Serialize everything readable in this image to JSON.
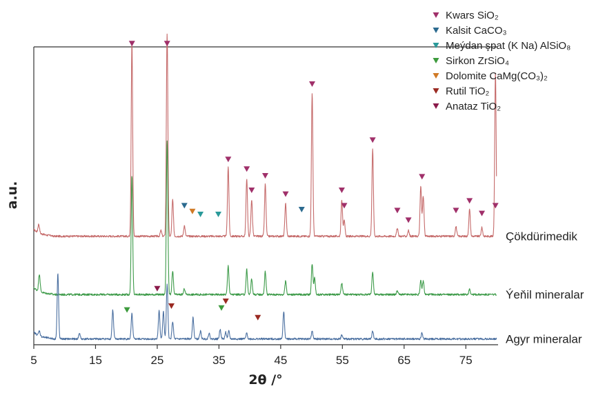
{
  "chart_data": {
    "type": "line",
    "xlabel": "2θ /°",
    "ylabel": "a.u.",
    "xlim": [
      5,
      80
    ],
    "x_ticks": [
      5,
      15,
      25,
      35,
      45,
      55,
      65,
      75
    ],
    "legend": {
      "position": "top-right",
      "entries": [
        {
          "symbol": "down-triangle",
          "color": "#a0306a",
          "label": "Kwars SiO₂"
        },
        {
          "symbol": "down-triangle",
          "color": "#2b6a8f",
          "label": "Kalsit CaCO₃"
        },
        {
          "symbol": "down-triangle",
          "color": "#2a9a9a",
          "label": "Meýdan şpat (K Na) AlSiO₈"
        },
        {
          "symbol": "down-triangle",
          "color": "#3c9a3c",
          "label": "Sirkon ZrSiO₄"
        },
        {
          "symbol": "down-triangle",
          "color": "#d07a26",
          "label": "Dolomite CaMg(CO₃)₂"
        },
        {
          "symbol": "down-triangle",
          "color": "#9a2a22",
          "label": "Rutil TiO₂"
        },
        {
          "symbol": "down-triangle",
          "color": "#8a1a4a",
          "label": "Anataz TiO₂"
        }
      ]
    },
    "series": [
      {
        "name": "Çökdürimedik",
        "color": "#c56a6a",
        "baseline": 0.62,
        "noise": 0.05,
        "peaks": [
          {
            "x": 5.8,
            "h": 0.45
          },
          {
            "x": 20.9,
            "h": 10.1
          },
          {
            "x": 25.6,
            "h": 0.3
          },
          {
            "x": 26.6,
            "h": 10.5
          },
          {
            "x": 27.5,
            "h": 1.9
          },
          {
            "x": 29.4,
            "h": 0.55
          },
          {
            "x": 36.5,
            "h": 3.6
          },
          {
            "x": 39.5,
            "h": 3.0
          },
          {
            "x": 40.3,
            "h": 1.9
          },
          {
            "x": 42.5,
            "h": 2.7
          },
          {
            "x": 45.8,
            "h": 1.7
          },
          {
            "x": 50.1,
            "h": 7.4
          },
          {
            "x": 54.9,
            "h": 1.9
          },
          {
            "x": 55.3,
            "h": 0.8
          },
          {
            "x": 59.9,
            "h": 4.5
          },
          {
            "x": 63.9,
            "h": 0.4
          },
          {
            "x": 65.7,
            "h": 0.3
          },
          {
            "x": 67.7,
            "h": 2.6
          },
          {
            "x": 68.1,
            "h": 2.1
          },
          {
            "x": 73.4,
            "h": 0.5
          },
          {
            "x": 75.6,
            "h": 1.4
          },
          {
            "x": 77.6,
            "h": 0.45
          },
          {
            "x": 79.8,
            "h": 8.5
          }
        ]
      },
      {
        "name": "Ýeňil mineralar",
        "color": "#3c9a48",
        "baseline": -2.4,
        "noise": 0.05,
        "peaks": [
          {
            "x": 5.9,
            "h": 0.9
          },
          {
            "x": 20.9,
            "h": 6.2
          },
          {
            "x": 26.6,
            "h": 8.0
          },
          {
            "x": 27.5,
            "h": 1.2
          },
          {
            "x": 29.4,
            "h": 0.3
          },
          {
            "x": 36.5,
            "h": 1.5
          },
          {
            "x": 39.5,
            "h": 1.3
          },
          {
            "x": 40.3,
            "h": 0.8
          },
          {
            "x": 42.5,
            "h": 1.2
          },
          {
            "x": 45.8,
            "h": 0.7
          },
          {
            "x": 50.1,
            "h": 1.6
          },
          {
            "x": 50.5,
            "h": 0.9
          },
          {
            "x": 54.9,
            "h": 0.6
          },
          {
            "x": 59.9,
            "h": 1.2
          },
          {
            "x": 63.9,
            "h": 0.2
          },
          {
            "x": 67.7,
            "h": 0.7
          },
          {
            "x": 68.1,
            "h": 0.7
          },
          {
            "x": 75.6,
            "h": 0.3
          }
        ]
      },
      {
        "name": "Agyr mineralar",
        "color": "#4a6fa0",
        "baseline": -4.7,
        "noise": 0.05,
        "peaks": [
          {
            "x": 5.9,
            "h": 0.25
          },
          {
            "x": 8.9,
            "h": 3.4
          },
          {
            "x": 12.4,
            "h": 0.3
          },
          {
            "x": 17.8,
            "h": 1.5
          },
          {
            "x": 20.9,
            "h": 1.3
          },
          {
            "x": 25.3,
            "h": 1.5
          },
          {
            "x": 26.0,
            "h": 1.4
          },
          {
            "x": 26.6,
            "h": 2.8
          },
          {
            "x": 27.5,
            "h": 0.9
          },
          {
            "x": 30.8,
            "h": 1.1
          },
          {
            "x": 32.0,
            "h": 0.4
          },
          {
            "x": 33.4,
            "h": 0.3
          },
          {
            "x": 35.2,
            "h": 0.5
          },
          {
            "x": 36.1,
            "h": 0.35
          },
          {
            "x": 36.6,
            "h": 0.4
          },
          {
            "x": 39.5,
            "h": 0.3
          },
          {
            "x": 45.5,
            "h": 1.4
          },
          {
            "x": 50.1,
            "h": 0.4
          },
          {
            "x": 54.9,
            "h": 0.2
          },
          {
            "x": 59.9,
            "h": 0.4
          },
          {
            "x": 67.9,
            "h": 0.3
          }
        ]
      }
    ],
    "markers": [
      {
        "x": 20.9,
        "phase": "Kwars SiO₂",
        "color": "#a0306a",
        "series": 0,
        "y": 10.6
      },
      {
        "x": 26.6,
        "phase": "Kwars SiO₂",
        "color": "#a0306a",
        "series": 0,
        "y": 10.6
      },
      {
        "x": 36.5,
        "phase": "Kwars SiO₂",
        "color": "#a0306a",
        "series": 0,
        "y": 4.6
      },
      {
        "x": 39.5,
        "phase": "Kwars SiO₂",
        "color": "#a0306a",
        "series": 0,
        "y": 4.1
      },
      {
        "x": 40.3,
        "phase": "Kwars SiO₂",
        "color": "#a0306a",
        "series": 0,
        "y": 3.0
      },
      {
        "x": 42.5,
        "phase": "Kwars SiO₂",
        "color": "#a0306a",
        "series": 0,
        "y": 3.75
      },
      {
        "x": 45.8,
        "phase": "Kwars SiO₂",
        "color": "#a0306a",
        "series": 0,
        "y": 2.8
      },
      {
        "x": 50.1,
        "phase": "Kwars SiO₂",
        "color": "#a0306a",
        "series": 0,
        "y": 8.5
      },
      {
        "x": 54.9,
        "phase": "Kwars SiO₂",
        "color": "#a0306a",
        "series": 0,
        "y": 3.0
      },
      {
        "x": 55.3,
        "phase": "Kwars SiO₂",
        "color": "#a0306a",
        "series": 0,
        "y": 2.2
      },
      {
        "x": 59.9,
        "phase": "Kwars SiO₂",
        "color": "#a0306a",
        "series": 0,
        "y": 5.6
      },
      {
        "x": 63.9,
        "phase": "Kwars SiO₂",
        "color": "#a0306a",
        "series": 0,
        "y": 1.95
      },
      {
        "x": 65.7,
        "phase": "Kwars SiO₂",
        "color": "#a0306a",
        "series": 0,
        "y": 1.45
      },
      {
        "x": 67.9,
        "phase": "Kwars SiO₂",
        "color": "#a0306a",
        "series": 0,
        "y": 3.7
      },
      {
        "x": 73.4,
        "phase": "Kwars SiO₂",
        "color": "#a0306a",
        "series": 0,
        "y": 1.95
      },
      {
        "x": 75.6,
        "phase": "Kwars SiO₂",
        "color": "#a0306a",
        "series": 0,
        "y": 2.45
      },
      {
        "x": 77.6,
        "phase": "Kwars SiO₂",
        "color": "#a0306a",
        "series": 0,
        "y": 1.8
      },
      {
        "x": 79.8,
        "phase": "Kwars SiO₂",
        "color": "#a0306a",
        "series": 0,
        "y": 2.2
      },
      {
        "x": 29.4,
        "phase": "Kalsit CaCO₃",
        "color": "#2b6a8f",
        "series": 0,
        "y": 2.2
      },
      {
        "x": 48.4,
        "phase": "Kalsit CaCO₃",
        "color": "#2b6a8f",
        "series": 0,
        "y": 2.0
      },
      {
        "x": 32.0,
        "phase": "Meýdan şpat (K Na) AlSiO₈",
        "color": "#2a9a9a",
        "series": 0,
        "y": 1.75
      },
      {
        "x": 34.9,
        "phase": "Meýdan şpat (K Na) AlSiO₈",
        "color": "#2a9a9a",
        "series": 0,
        "y": 1.75
      },
      {
        "x": 30.7,
        "phase": "Dolomite CaMg(CO₃)₂",
        "color": "#d07a26",
        "series": 0,
        "y": 1.9
      },
      {
        "x": 25.0,
        "phase": "Anataz TiO₂",
        "color": "#8a1a4a",
        "series": 2,
        "y": -2.1
      },
      {
        "x": 20.1,
        "phase": "Sirkon ZrSiO₄",
        "color": "#3c9a3c",
        "series": 2,
        "y": -3.2
      },
      {
        "x": 35.4,
        "phase": "Sirkon ZrSiO₄",
        "color": "#3c9a3c",
        "series": 2,
        "y": -3.1
      },
      {
        "x": 27.3,
        "phase": "Rutil TiO₂",
        "color": "#9a2a22",
        "series": 2,
        "y": -3.0
      },
      {
        "x": 36.1,
        "phase": "Rutil TiO₂",
        "color": "#9a2a22",
        "series": 2,
        "y": -2.75
      },
      {
        "x": 41.3,
        "phase": "Rutil TiO₂",
        "color": "#9a2a22",
        "series": 2,
        "y": -3.6
      }
    ]
  }
}
